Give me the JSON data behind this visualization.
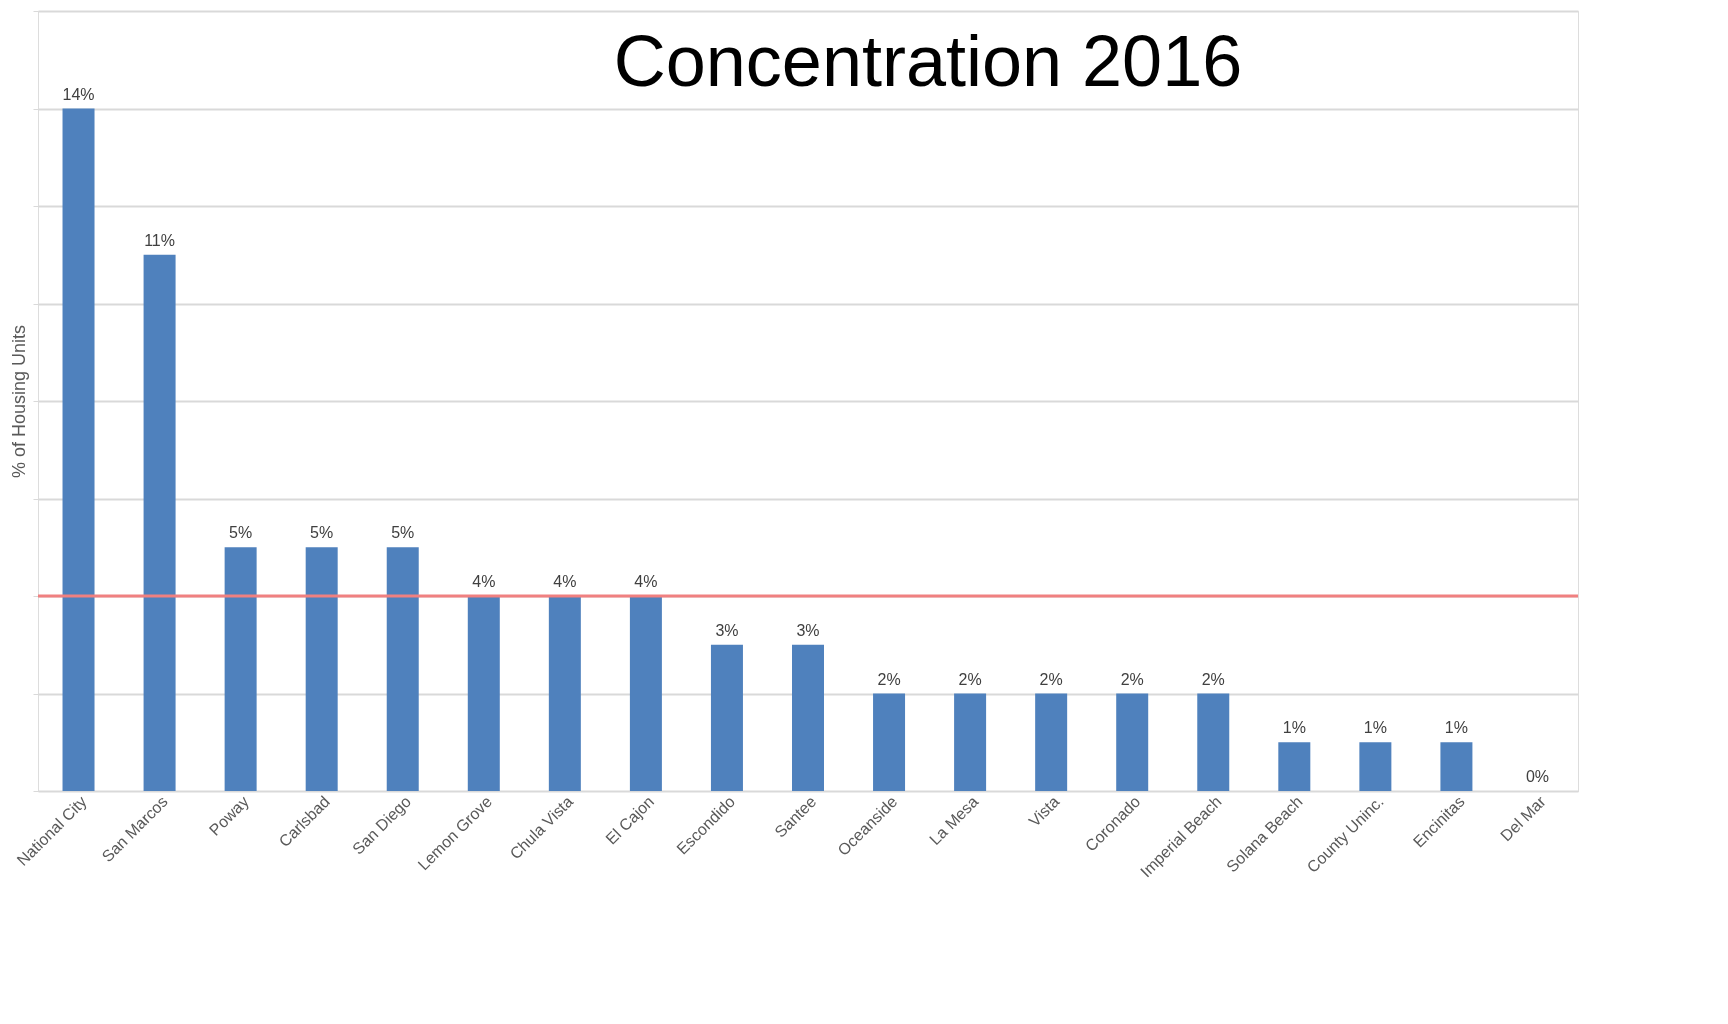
{
  "chart_data": {
    "type": "bar",
    "title": "Concentration 2016",
    "ylabel": "% of Housing Units",
    "categories": [
      "National City",
      "San Marcos",
      "Poway",
      "Carlsbad",
      "San Diego",
      "Lemon Grove",
      "Chula Vista",
      "El Cajon",
      "Escondido",
      "Santee",
      "Oceanside",
      "La Mesa",
      "Vista",
      "Coronado",
      "Imperial Beach",
      "Solana Beach",
      "County Uninc.",
      "Encinitas",
      "Del Mar"
    ],
    "values": [
      14,
      11,
      5,
      5,
      5,
      4,
      4,
      4,
      3,
      3,
      2,
      2,
      2,
      2,
      2,
      1,
      1,
      1,
      0
    ],
    "value_labels": [
      "14%",
      "11%",
      "5%",
      "5%",
      "5%",
      "4%",
      "4%",
      "4%",
      "3%",
      "3%",
      "2%",
      "2%",
      "2%",
      "2%",
      "2%",
      "1%",
      "1%",
      "1%",
      "0%"
    ],
    "color": "#4f81bd",
    "ylim": [
      0,
      16
    ],
    "yticks": [
      {
        "value": 0,
        "label": null
      },
      {
        "value": 2,
        "label": null
      },
      {
        "value": 4,
        "label": null
      },
      {
        "value": 6,
        "label": null
      },
      {
        "value": 8,
        "label": null
      },
      {
        "value": 10,
        "label": null
      },
      {
        "value": 12,
        "label": null
      },
      {
        "value": 14,
        "label": null
      },
      {
        "value": 16,
        "label": null
      }
    ],
    "tick_labels": "x",
    "grid": "y",
    "ref_lines": [
      {
        "axis": "y",
        "value": 4,
        "color": "#f08080"
      }
    ]
  }
}
